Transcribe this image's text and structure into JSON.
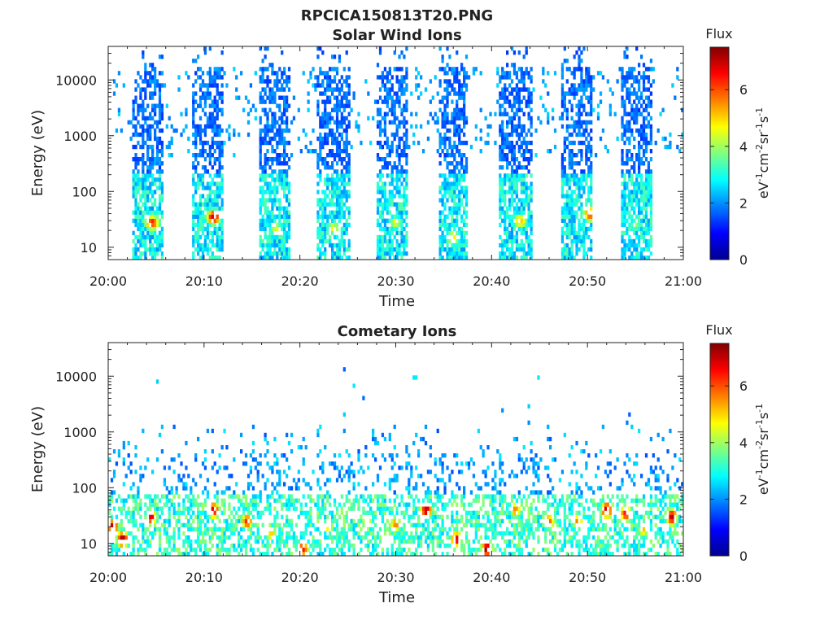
{
  "figure": {
    "title": "RPCICA150813T20.PNG"
  },
  "colors": {
    "axis": "#222222",
    "background": "#ffffff"
  },
  "chart_data": [
    {
      "type": "heatmap",
      "title": "Solar Wind Ions",
      "xlabel": "Time",
      "ylabel": "Energy (eV)",
      "x_range": [
        "20:00",
        "21:00"
      ],
      "xticks": [
        "20:00",
        "20:10",
        "20:20",
        "20:30",
        "20:40",
        "20:50",
        "21:00"
      ],
      "y_scale": "log",
      "ylim": [
        6,
        40000
      ],
      "yticks": [
        10,
        100,
        1000,
        10000
      ],
      "ytick_labels": [
        "10",
        "100",
        "1000",
        "10000"
      ],
      "colorbar": {
        "label": "Flux",
        "unit_label": "eV-1cm-2sr-1s-1",
        "range": [
          0,
          7.5
        ],
        "ticks": [
          "0",
          "2",
          "4",
          "6"
        ],
        "colormap": "jet"
      },
      "description_pattern": "periodic",
      "bursts": [
        {
          "start_min": 2.5,
          "end_min": 5.8,
          "peak_min": 4.6,
          "peak_energy_eV": 28,
          "peak_flux": 6.2
        },
        {
          "start_min": 8.8,
          "end_min": 12.0,
          "peak_min": 11.0,
          "peak_energy_eV": 35,
          "peak_flux": 6.6
        },
        {
          "start_min": 15.8,
          "end_min": 19.0,
          "peak_min": 17.5,
          "peak_energy_eV": 22,
          "peak_flux": 4.2
        },
        {
          "start_min": 21.8,
          "end_min": 25.2,
          "peak_min": 23.5,
          "peak_energy_eV": 22,
          "peak_flux": 4.4
        },
        {
          "start_min": 28.0,
          "end_min": 31.2,
          "peak_min": 30.0,
          "peak_energy_eV": 28,
          "peak_flux": 4.4
        },
        {
          "start_min": 34.5,
          "end_min": 37.5,
          "peak_min": 36.0,
          "peak_energy_eV": 15,
          "peak_flux": 4.8
        },
        {
          "start_min": 40.8,
          "end_min": 44.2,
          "peak_min": 43.0,
          "peak_energy_eV": 30,
          "peak_flux": 5.0
        },
        {
          "start_min": 47.2,
          "end_min": 50.5,
          "peak_min": 50.3,
          "peak_energy_eV": 40,
          "peak_flux": 6.0
        },
        {
          "start_min": 53.5,
          "end_min": 56.8,
          "peak_min": 55.0,
          "peak_energy_eV": 25,
          "peak_flux": 3.8
        }
      ]
    },
    {
      "type": "heatmap",
      "title": "Cometary Ions",
      "xlabel": "Time",
      "ylabel": "Energy (eV)",
      "x_range": [
        "20:00",
        "21:00"
      ],
      "xticks": [
        "20:00",
        "20:10",
        "20:20",
        "20:30",
        "20:40",
        "20:50",
        "21:00"
      ],
      "y_scale": "log",
      "ylim": [
        6,
        40000
      ],
      "yticks": [
        10,
        100,
        1000,
        10000
      ],
      "ytick_labels": [
        "10",
        "100",
        "1000",
        "10000"
      ],
      "colorbar": {
        "label": "Flux",
        "unit_label": "eV-1cm-2sr-1s-1",
        "range": [
          0,
          7.5
        ],
        "ticks": [
          "0",
          "2",
          "4",
          "6"
        ],
        "colormap": "jet"
      },
      "hot_spots": [
        {
          "min": 0.5,
          "energy_eV": 20,
          "flux": 7.0
        },
        {
          "min": 1.5,
          "energy_eV": 12,
          "flux": 7.2
        },
        {
          "min": 4.5,
          "energy_eV": 30,
          "flux": 6.6
        },
        {
          "min": 11.0,
          "energy_eV": 40,
          "flux": 6.8
        },
        {
          "min": 14.5,
          "energy_eV": 25,
          "flux": 6.2
        },
        {
          "min": 17.0,
          "energy_eV": 15,
          "flux": 5.0
        },
        {
          "min": 20.3,
          "energy_eV": 8,
          "flux": 6.5
        },
        {
          "min": 23.0,
          "energy_eV": 20,
          "flux": 4.8
        },
        {
          "min": 27.0,
          "energy_eV": 25,
          "flux": 5.2
        },
        {
          "min": 30.0,
          "energy_eV": 22,
          "flux": 5.5
        },
        {
          "min": 33.2,
          "energy_eV": 40,
          "flux": 7.0
        },
        {
          "min": 36.3,
          "energy_eV": 12,
          "flux": 6.6
        },
        {
          "min": 39.5,
          "energy_eV": 8,
          "flux": 7.2
        },
        {
          "min": 42.5,
          "energy_eV": 40,
          "flux": 5.5
        },
        {
          "min": 46.0,
          "energy_eV": 25,
          "flux": 5.8
        },
        {
          "min": 49.0,
          "energy_eV": 25,
          "flux": 5.5
        },
        {
          "min": 52.0,
          "energy_eV": 40,
          "flux": 7.0
        },
        {
          "min": 54.0,
          "energy_eV": 35,
          "flux": 6.5
        },
        {
          "min": 55.8,
          "energy_eV": 18,
          "flux": 5.0
        },
        {
          "min": 58.8,
          "energy_eV": 30,
          "flux": 7.0
        }
      ]
    }
  ]
}
